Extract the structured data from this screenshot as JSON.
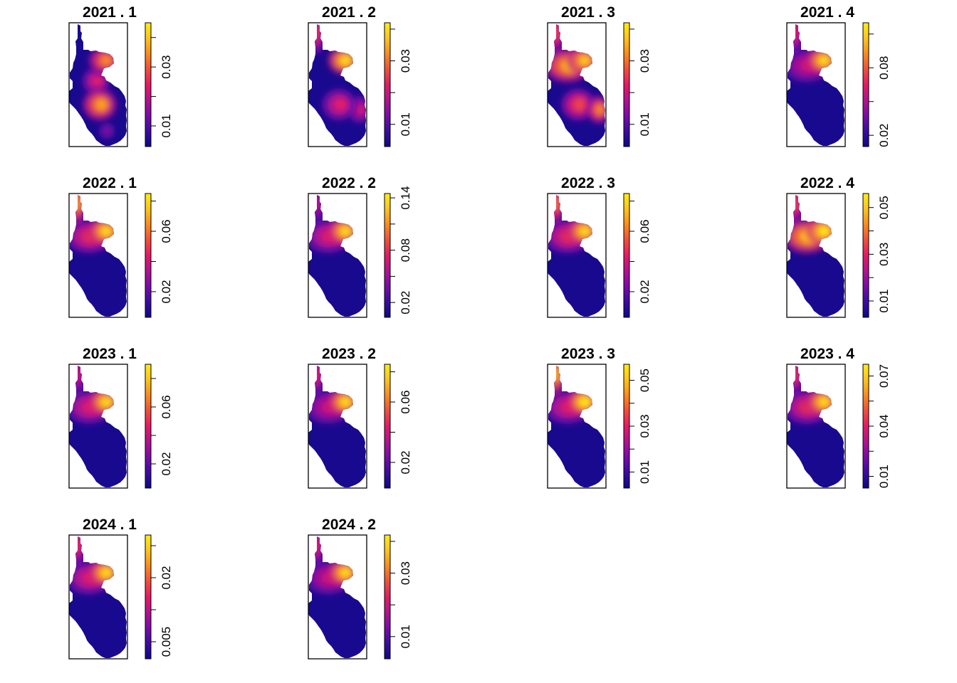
{
  "chart_data": {
    "type": "heatmap",
    "colormap": [
      "#0d0887",
      "#3a0ca3",
      "#7a0ca8",
      "#b1138f",
      "#e41a66",
      "#f04f3c",
      "#f98c1e",
      "#fcc41d",
      "#ffec19"
    ],
    "panels": [
      {
        "title": "2021 . 1",
        "ticks": [
          "0.01",
          "0.03"
        ],
        "tick_values": [
          0.01,
          0.03
        ],
        "zlim": [
          0.003,
          0.045
        ],
        "hotspots": [
          {
            "at": "upper-right lobe",
            "level": 0.75
          },
          {
            "at": "middle",
            "level": 0.5
          },
          {
            "at": "lower-center",
            "level": 0.8
          },
          {
            "at": "bottom",
            "level": 0.3
          }
        ]
      },
      {
        "title": "2021 . 2",
        "ticks": [
          "0.01",
          "0.03"
        ],
        "tick_values": [
          0.01,
          0.03
        ],
        "zlim": [
          0.003,
          0.042
        ],
        "hotspots": [
          {
            "at": "top tip",
            "level": 0.55
          },
          {
            "at": "upper-right lobe",
            "level": 0.95
          },
          {
            "at": "lower-center",
            "level": 0.5
          },
          {
            "at": "lower-right",
            "level": 0.45
          }
        ]
      },
      {
        "title": "2021 . 3",
        "ticks": [
          "0.01",
          "0.03"
        ],
        "tick_values": [
          0.01,
          0.03
        ],
        "zlim": [
          0.003,
          0.042
        ],
        "hotspots": [
          {
            "at": "top tip",
            "level": 0.6
          },
          {
            "at": "upper-left",
            "level": 0.85
          },
          {
            "at": "upper-right lobe",
            "level": 0.9
          },
          {
            "at": "lower-center",
            "level": 0.6
          },
          {
            "at": "lower-right",
            "level": 0.75
          }
        ]
      },
      {
        "title": "2021 . 4",
        "ticks": [
          "0.02",
          "0.08"
        ],
        "tick_values": [
          0.02,
          0.08
        ],
        "zlim": [
          0.01,
          0.12
        ],
        "hotspots": [
          {
            "at": "top tip",
            "level": 0.5
          },
          {
            "at": "upper-right lobe",
            "level": 0.95
          },
          {
            "at": "upper-left",
            "level": 0.45
          }
        ]
      },
      {
        "title": "2022 . 1",
        "ticks": [
          "0.02",
          "0.06"
        ],
        "tick_values": [
          0.02,
          0.06
        ],
        "zlim": [
          0.003,
          0.085
        ],
        "hotspots": [
          {
            "at": "top tip",
            "level": 0.8
          },
          {
            "at": "upper-right lobe",
            "level": 0.95
          },
          {
            "at": "upper-left",
            "level": 0.55
          }
        ]
      },
      {
        "title": "2022 . 2",
        "ticks": [
          "0.02",
          "0.08",
          "0.14"
        ],
        "tick_values": [
          0.02,
          0.08,
          0.14
        ],
        "zlim": [
          0.003,
          0.145
        ],
        "hotspots": [
          {
            "at": "top tip",
            "level": 0.4
          },
          {
            "at": "upper-right lobe",
            "level": 0.95
          },
          {
            "at": "upper-left",
            "level": 0.5
          }
        ]
      },
      {
        "title": "2022 . 3",
        "ticks": [
          "0.02",
          "0.06"
        ],
        "tick_values": [
          0.02,
          0.06
        ],
        "zlim": [
          0.003,
          0.085
        ],
        "hotspots": [
          {
            "at": "top tip",
            "level": 0.7
          },
          {
            "at": "upper-right lobe",
            "level": 0.95
          },
          {
            "at": "upper-left",
            "level": 0.55
          }
        ]
      },
      {
        "title": "2022 . 4",
        "ticks": [
          "0.01",
          "0.03",
          "0.05"
        ],
        "tick_values": [
          0.01,
          0.03,
          0.05
        ],
        "zlim": [
          0.003,
          0.056
        ],
        "hotspots": [
          {
            "at": "top tip",
            "level": 0.6
          },
          {
            "at": "upper-right lobe",
            "level": 1.0
          },
          {
            "at": "upper-left",
            "level": 0.9
          }
        ]
      },
      {
        "title": "2023 . 1",
        "ticks": [
          "0.02",
          "0.06"
        ],
        "tick_values": [
          0.02,
          0.06
        ],
        "zlim": [
          0.003,
          0.09
        ],
        "hotspots": [
          {
            "at": "top tip",
            "level": 0.45
          },
          {
            "at": "upper-right lobe",
            "level": 0.95
          },
          {
            "at": "upper-left",
            "level": 0.5
          }
        ]
      },
      {
        "title": "2023 . 2",
        "ticks": [
          "0.02",
          "0.06"
        ],
        "tick_values": [
          0.02,
          0.06
        ],
        "zlim": [
          0.003,
          0.085
        ],
        "hotspots": [
          {
            "at": "top tip",
            "level": 0.5
          },
          {
            "at": "upper-right lobe",
            "level": 0.95
          },
          {
            "at": "upper-left",
            "level": 0.45
          }
        ]
      },
      {
        "title": "2023 . 3",
        "ticks": [
          "0.01",
          "0.03",
          "0.05"
        ],
        "tick_values": [
          0.01,
          0.03,
          0.05
        ],
        "zlim": [
          0.003,
          0.057
        ],
        "hotspots": [
          {
            "at": "top tip",
            "level": 0.85
          },
          {
            "at": "upper-right lobe",
            "level": 1.0
          },
          {
            "at": "upper-left",
            "level": 0.5
          }
        ]
      },
      {
        "title": "2023 . 4",
        "ticks": [
          "0.01",
          "0.04",
          "0.07"
        ],
        "tick_values": [
          0.01,
          0.04,
          0.07
        ],
        "zlim": [
          0.003,
          0.077
        ],
        "hotspots": [
          {
            "at": "top tip",
            "level": 0.55
          },
          {
            "at": "upper-right lobe",
            "level": 0.95
          },
          {
            "at": "upper-left",
            "level": 0.55
          }
        ]
      },
      {
        "title": "2024 . 1",
        "ticks": [
          "0.005",
          "0.02"
        ],
        "tick_values": [
          0.005,
          0.02
        ],
        "zlim": [
          0.001,
          0.03
        ],
        "hotspots": [
          {
            "at": "top tip",
            "level": 0.55
          },
          {
            "at": "upper-right lobe",
            "level": 0.95
          },
          {
            "at": "upper-left",
            "level": 0.5
          }
        ]
      },
      {
        "title": "2024 . 2",
        "ticks": [
          "0.01",
          "0.03"
        ],
        "tick_values": [
          0.01,
          0.03
        ],
        "zlim": [
          0.003,
          0.042
        ],
        "hotspots": [
          {
            "at": "top tip",
            "level": 0.5
          },
          {
            "at": "upper-right lobe",
            "level": 0.95
          },
          {
            "at": "upper-left",
            "level": 0.45
          }
        ]
      }
    ]
  }
}
